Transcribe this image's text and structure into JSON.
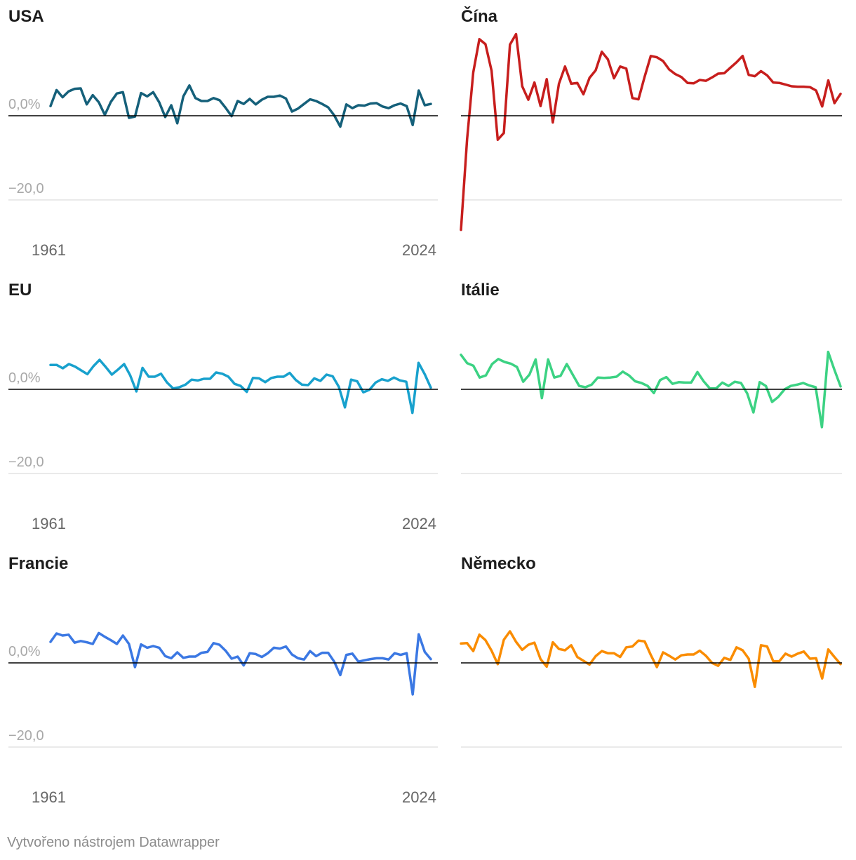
{
  "footer": "Vytvořeno nástrojem Datawrapper",
  "chart_data": {
    "type": "line",
    "layout": "small-multiples",
    "x_range": [
      1961,
      2024
    ],
    "ylim": [
      -27,
      30
    ],
    "y_ticks": [
      0,
      -20
    ],
    "y_tick_labels": [
      "0,0%",
      "−20,0"
    ],
    "x_tick_labels": [
      "1961",
      "2024"
    ],
    "colors": {
      "USA": "#15607a",
      "Čína": "#c71e1d",
      "EU": "#18a1cd",
      "Itálie": "#3cd283",
      "Francie": "#3b78e3",
      "Německo": "#fa8c00",
      "zero_line": "#000000",
      "grid": "#e3e3e3"
    },
    "panels": [
      {
        "title": "USA",
        "show_y_labels": true,
        "show_x_labels": true,
        "values": [
          2.3,
          6.1,
          4.4,
          5.8,
          6.4,
          6.5,
          2.7,
          4.9,
          3.2,
          0.2,
          3.3,
          5.3,
          5.6,
          -0.5,
          -0.2,
          5.4,
          4.6,
          5.6,
          3.2,
          -0.3,
          2.5,
          -1.8,
          4.6,
          7.2,
          4.2,
          3.5,
          3.5,
          4.2,
          3.7,
          1.9,
          -0.1,
          3.5,
          2.8,
          4.0,
          2.7,
          3.8,
          4.5,
          4.5,
          4.8,
          4.1,
          1.0,
          1.7,
          2.8,
          3.9,
          3.5,
          2.8,
          2.0,
          0.1,
          -2.6,
          2.7,
          1.8,
          2.5,
          2.4,
          2.9,
          3.0,
          2.2,
          1.8,
          2.5,
          2.9,
          2.3,
          -2.2,
          6.0,
          2.5,
          2.8
        ]
      },
      {
        "title": "Čína",
        "show_y_labels": false,
        "show_x_labels": false,
        "values": [
          -27.1,
          -5.6,
          10.3,
          18.2,
          17.0,
          10.7,
          -5.7,
          -4.1,
          16.9,
          19.4,
          7.0,
          3.8,
          7.9,
          2.3,
          8.7,
          -1.6,
          7.6,
          11.7,
          7.6,
          7.8,
          5.1,
          9.0,
          10.8,
          15.2,
          13.4,
          8.9,
          11.7,
          11.2,
          4.2,
          3.9,
          9.3,
          14.2,
          13.9,
          13.0,
          11.0,
          9.9,
          9.2,
          7.8,
          7.7,
          8.5,
          8.3,
          9.1,
          10.0,
          10.1,
          11.4,
          12.7,
          14.2,
          9.7,
          9.4,
          10.6,
          9.6,
          7.9,
          7.8,
          7.4,
          7.0,
          6.9,
          6.9,
          6.8,
          6.0,
          2.2,
          8.4,
          3.0,
          5.2
        ]
      },
      {
        "title": "EU",
        "show_y_labels": true,
        "show_x_labels": true,
        "values": [
          5.8,
          5.8,
          5.0,
          6.0,
          5.4,
          4.5,
          3.6,
          5.5,
          7.0,
          5.3,
          3.5,
          4.7,
          6.0,
          3.3,
          -0.5,
          5.1,
          3.0,
          3.0,
          3.7,
          1.6,
          0.2,
          0.5,
          1.1,
          2.3,
          2.1,
          2.5,
          2.5,
          4.0,
          3.7,
          3.0,
          1.3,
          0.8,
          -0.6,
          2.7,
          2.6,
          1.7,
          2.7,
          3.0,
          3.0,
          3.9,
          2.2,
          1.1,
          1.0,
          2.6,
          2.0,
          3.5,
          3.1,
          0.6,
          -4.3,
          2.3,
          1.9,
          -0.7,
          -0.1,
          1.6,
          2.4,
          2.0,
          2.8,
          2.1,
          1.8,
          -5.6,
          6.3,
          3.6,
          0.4
        ]
      },
      {
        "title": "Itálie",
        "show_y_labels": false,
        "show_x_labels": false,
        "values": [
          8.2,
          6.2,
          5.6,
          2.8,
          3.3,
          6.0,
          7.2,
          6.5,
          6.1,
          5.3,
          1.8,
          3.5,
          7.1,
          -2.1,
          7.1,
          2.8,
          3.2,
          6.0,
          3.4,
          0.8,
          0.5,
          1.1,
          2.8,
          2.7,
          2.8,
          3.0,
          4.2,
          3.3,
          1.9,
          1.5,
          0.8,
          -0.9,
          2.2,
          2.9,
          1.3,
          1.7,
          1.6,
          1.6,
          4.1,
          1.9,
          0.2,
          0.2,
          1.6,
          0.8,
          1.8,
          1.5,
          -1.0,
          -5.5,
          1.7,
          0.8,
          -3.0,
          -1.8,
          0.0,
          0.8,
          1.1,
          1.5,
          0.9,
          0.5,
          -9.0,
          8.9,
          4.7,
          0.7
        ]
      },
      {
        "title": "Francie",
        "show_y_labels": true,
        "show_x_labels": true,
        "values": [
          5.0,
          7.0,
          6.5,
          6.7,
          4.8,
          5.2,
          4.9,
          4.5,
          7.1,
          6.2,
          5.4,
          4.5,
          6.5,
          4.5,
          -1.0,
          4.4,
          3.6,
          4.0,
          3.6,
          1.6,
          1.1,
          2.5,
          1.2,
          1.5,
          1.5,
          2.4,
          2.6,
          4.7,
          4.3,
          2.9,
          1.0,
          1.5,
          -0.6,
          2.3,
          2.1,
          1.4,
          2.3,
          3.6,
          3.4,
          3.9,
          2.0,
          1.1,
          0.8,
          2.8,
          1.6,
          2.4,
          2.4,
          0.3,
          -2.9,
          1.9,
          2.2,
          0.3,
          0.6,
          0.9,
          1.1,
          1.1,
          0.8,
          2.3,
          1.9,
          2.3,
          -7.5,
          6.8,
          2.6,
          0.9
        ]
      },
      {
        "title": "Německo",
        "show_y_labels": false,
        "show_x_labels": false,
        "values": [
          4.6,
          4.7,
          2.8,
          6.7,
          5.4,
          2.9,
          -0.3,
          5.5,
          7.5,
          5.0,
          3.1,
          4.3,
          4.8,
          0.9,
          -0.9,
          4.9,
          3.3,
          3.0,
          4.2,
          1.4,
          0.5,
          -0.4,
          1.6,
          2.8,
          2.3,
          2.3,
          1.4,
          3.7,
          3.9,
          5.3,
          5.1,
          1.9,
          -1.0,
          2.5,
          1.7,
          0.8,
          1.8,
          2.0,
          2.0,
          2.9,
          1.7,
          0.0,
          -0.7,
          1.2,
          0.7,
          3.7,
          3.0,
          1.0,
          -5.7,
          4.2,
          3.9,
          0.4,
          0.4,
          2.2,
          1.5,
          2.2,
          2.7,
          1.0,
          1.1,
          -3.7,
          3.2,
          1.4,
          -0.3
        ]
      }
    ]
  }
}
